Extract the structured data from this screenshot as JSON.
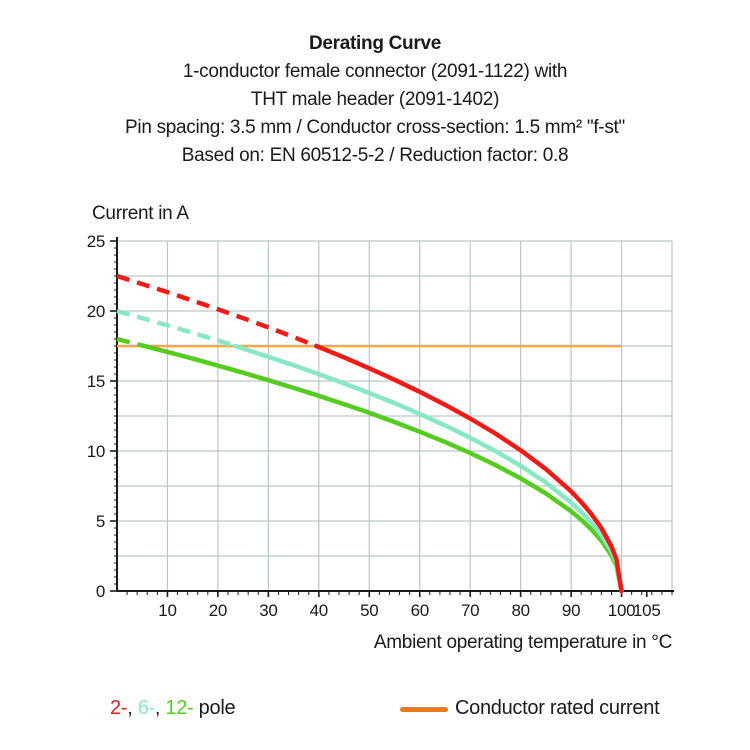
{
  "colors": {
    "red": "#ed1c16",
    "mint": "#8ae7c4",
    "green": "#56cb20",
    "orange_line": "#f9a648",
    "orange_legend": "#f2791b",
    "grid": "#bcc6c6",
    "axis": "#1a1a1a",
    "text": "#1a1a1a"
  },
  "header": {
    "title": "Derating Curve",
    "subtitle_lines": [
      "1-conductor female connector (2091-1122) with",
      "THT male header (2091-1402)",
      "Pin spacing: 3.5 mm / Conductor cross-section: 1.5 mm² \"f-st\"",
      "Based on: EN 60512-5-2 / Reduction factor: 0.8"
    ]
  },
  "chart_data": {
    "type": "line",
    "title": "Derating Curve",
    "ylabel": "Current in A",
    "xlabel": "Ambient operating temperature in °C",
    "xlim": [
      0,
      110
    ],
    "ylim": [
      0,
      25
    ],
    "x_major_ticks": [
      10,
      20,
      30,
      40,
      50,
      60,
      70,
      80,
      90,
      100,
      105
    ],
    "y_major_ticks": [
      0,
      5,
      10,
      15,
      20,
      25
    ],
    "x_minor_step": 2,
    "y_minor_step": 0.5,
    "grid_x_step": 10,
    "grid_y_step": 2.5,
    "grid_on": true,
    "legend_position": "bottom",
    "rated_current": {
      "label": "Conductor rated current",
      "value": 17.5,
      "x_start": 0,
      "x_end": 100,
      "color_key": "orange_line"
    },
    "series": [
      {
        "name": "12-pole",
        "color_key": "green",
        "dashed_above_current": 17.5,
        "solid_from_x": 5.5,
        "points": [
          [
            0,
            18
          ],
          [
            5,
            17.54
          ],
          [
            10,
            17.08
          ],
          [
            15,
            16.6
          ],
          [
            20,
            16.1
          ],
          [
            25,
            15.59
          ],
          [
            30,
            15.06
          ],
          [
            35,
            14.51
          ],
          [
            40,
            13.94
          ],
          [
            45,
            13.35
          ],
          [
            50,
            12.73
          ],
          [
            55,
            12.07
          ],
          [
            60,
            11.38
          ],
          [
            65,
            10.65
          ],
          [
            70,
            9.86
          ],
          [
            75,
            9
          ],
          [
            80,
            8.05
          ],
          [
            85,
            6.97
          ],
          [
            90,
            5.69
          ],
          [
            92,
            5.09
          ],
          [
            94,
            4.41
          ],
          [
            96,
            3.6
          ],
          [
            98,
            2.55
          ],
          [
            99,
            1.8
          ],
          [
            100,
            0
          ]
        ]
      },
      {
        "name": "6-pole",
        "color_key": "mint",
        "dashed_above_current": 17.5,
        "solid_from_x": 23.4,
        "points": [
          [
            0,
            20
          ],
          [
            5,
            19.49
          ],
          [
            10,
            18.97
          ],
          [
            15,
            18.44
          ],
          [
            20,
            17.89
          ],
          [
            25,
            17.32
          ],
          [
            30,
            16.73
          ],
          [
            35,
            16.12
          ],
          [
            40,
            15.49
          ],
          [
            45,
            14.83
          ],
          [
            50,
            14.14
          ],
          [
            55,
            13.42
          ],
          [
            60,
            12.65
          ],
          [
            65,
            11.83
          ],
          [
            70,
            10.95
          ],
          [
            75,
            10
          ],
          [
            80,
            8.94
          ],
          [
            85,
            7.75
          ],
          [
            90,
            6.32
          ],
          [
            92,
            5.66
          ],
          [
            94,
            4.9
          ],
          [
            96,
            4
          ],
          [
            98,
            2.83
          ],
          [
            99,
            2
          ],
          [
            100,
            0
          ]
        ]
      },
      {
        "name": "2-pole",
        "color_key": "red",
        "dashed_above_current": 17.5,
        "solid_from_x": 39.5,
        "points": [
          [
            0,
            22.5
          ],
          [
            5,
            21.93
          ],
          [
            10,
            21.35
          ],
          [
            15,
            20.74
          ],
          [
            20,
            20.12
          ],
          [
            25,
            19.49
          ],
          [
            30,
            18.83
          ],
          [
            35,
            18.14
          ],
          [
            40,
            17.43
          ],
          [
            45,
            16.69
          ],
          [
            50,
            15.91
          ],
          [
            55,
            15.09
          ],
          [
            60,
            14.23
          ],
          [
            65,
            13.31
          ],
          [
            70,
            12.32
          ],
          [
            75,
            11.25
          ],
          [
            80,
            10.06
          ],
          [
            85,
            8.71
          ],
          [
            90,
            7.12
          ],
          [
            92,
            6.36
          ],
          [
            94,
            5.51
          ],
          [
            96,
            4.5
          ],
          [
            98,
            3.18
          ],
          [
            99,
            2.25
          ],
          [
            100,
            0
          ]
        ]
      }
    ]
  },
  "legend": {
    "pole_segments": [
      {
        "text": "2-",
        "color_key": "red"
      },
      {
        "text": ", ",
        "color_key": "text"
      },
      {
        "text": "6-",
        "color_key": "mint"
      },
      {
        "text": ", ",
        "color_key": "text"
      },
      {
        "text": "12-",
        "color_key": "green"
      },
      {
        "text": " pole",
        "color_key": "text"
      }
    ],
    "rated_label": "Conductor rated current"
  }
}
